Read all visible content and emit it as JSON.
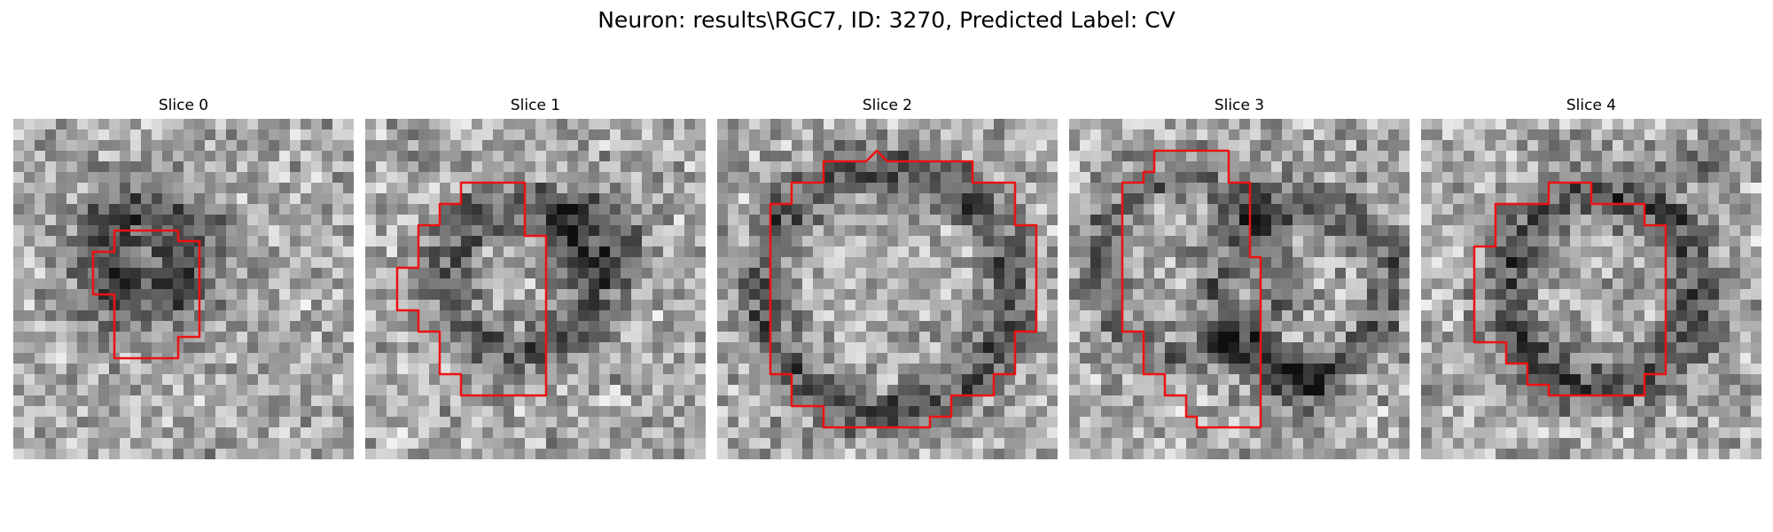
{
  "figure": {
    "title": "Neuron: results\\RGC7, ID: 3270, Predicted Label: CV",
    "contour_color": "#ee1111"
  },
  "slices": [
    {
      "title": "Slice 0"
    },
    {
      "title": "Slice 1"
    },
    {
      "title": "Slice 2"
    },
    {
      "title": "Slice 3"
    },
    {
      "title": "Slice 4"
    }
  ]
}
